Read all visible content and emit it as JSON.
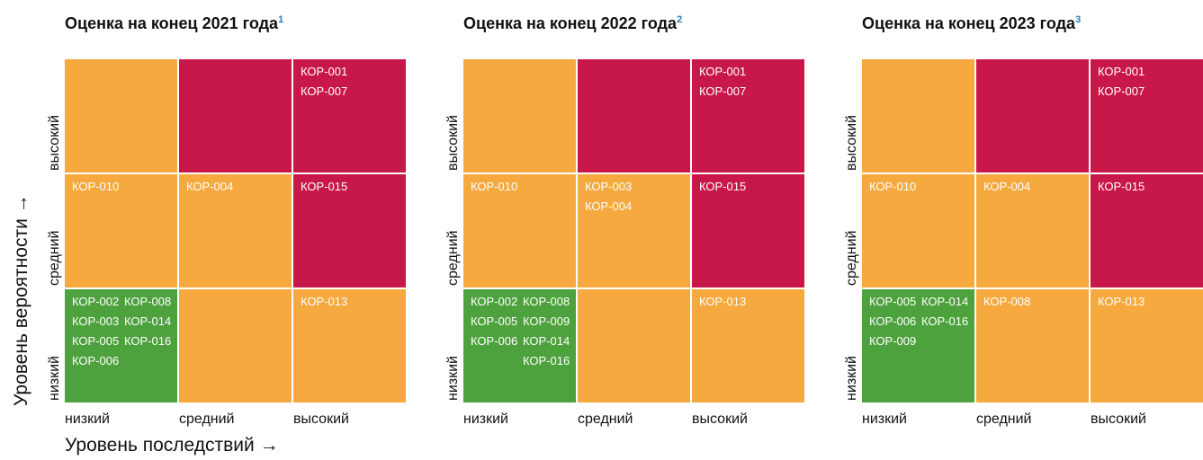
{
  "y_axis_label": "Уровень вероятности →",
  "x_axis_label": "Уровень последствий →",
  "cell_colors": [
    [
      "#f5a93f",
      "#c8184a",
      "#c8184a"
    ],
    [
      "#f5a93f",
      "#f5a93f",
      "#c8184a"
    ],
    [
      "#4ea23e",
      "#f5a93f",
      "#f5a93f"
    ]
  ],
  "panels": [
    {
      "title": "Оценка на конец 2021 года",
      "footnote": "1",
      "row_labels": [
        "высокий",
        "средний",
        "низкий"
      ],
      "col_labels": [
        "низкий",
        "средний",
        "высокий"
      ],
      "cells": [
        [
          [],
          [],
          [
            [
              "КОР-001",
              "КОР-007"
            ]
          ]
        ],
        [
          [
            [
              "КОР-010"
            ]
          ],
          [
            [
              "КОР-004"
            ]
          ],
          [
            [
              "КОР-015"
            ]
          ]
        ],
        [
          [
            [
              "КОР-002",
              "КОР-003",
              "КОР-005",
              "КОР-006"
            ],
            [
              "КОР-008",
              "КОР-014",
              "КОР-016"
            ]
          ],
          [],
          [
            [
              "КОР-013"
            ]
          ]
        ]
      ]
    },
    {
      "title": "Оценка на конец 2022 года",
      "footnote": "2",
      "row_labels": [
        "высокий",
        "средний",
        "низкий"
      ],
      "col_labels": [
        "низкий",
        "средний",
        "высокий"
      ],
      "cells": [
        [
          [],
          [],
          [
            [
              "КОР-001",
              "КОР-007"
            ]
          ]
        ],
        [
          [
            [
              "КОР-010"
            ]
          ],
          [
            [
              "КОР-003",
              "КОР-004"
            ]
          ],
          [
            [
              "КОР-015"
            ]
          ]
        ],
        [
          [
            [
              "КОР-002",
              "КОР-005",
              "КОР-006"
            ],
            [
              "КОР-008",
              "КОР-009",
              "КОР-014",
              "КОР-016"
            ]
          ],
          [],
          [
            [
              "КОР-013"
            ]
          ]
        ]
      ]
    },
    {
      "title": "Оценка на конец 2023 года",
      "footnote": "3",
      "row_labels": [
        "высокий",
        "средний",
        "низкий"
      ],
      "col_labels": [
        "низкий",
        "средний",
        "высокий"
      ],
      "cells": [
        [
          [],
          [],
          [
            [
              "КОР-001",
              "КОР-007"
            ]
          ]
        ],
        [
          [
            [
              "КОР-010"
            ]
          ],
          [
            [
              "КОР-004"
            ]
          ],
          [
            [
              "КОР-015"
            ]
          ]
        ],
        [
          [
            [
              "КОР-005",
              "КОР-006",
              "КОР-009"
            ],
            [
              "КОР-014",
              "КОР-016"
            ]
          ],
          [
            [
              "КОР-008"
            ]
          ],
          [
            [
              "КОР-013"
            ]
          ]
        ]
      ]
    }
  ]
}
